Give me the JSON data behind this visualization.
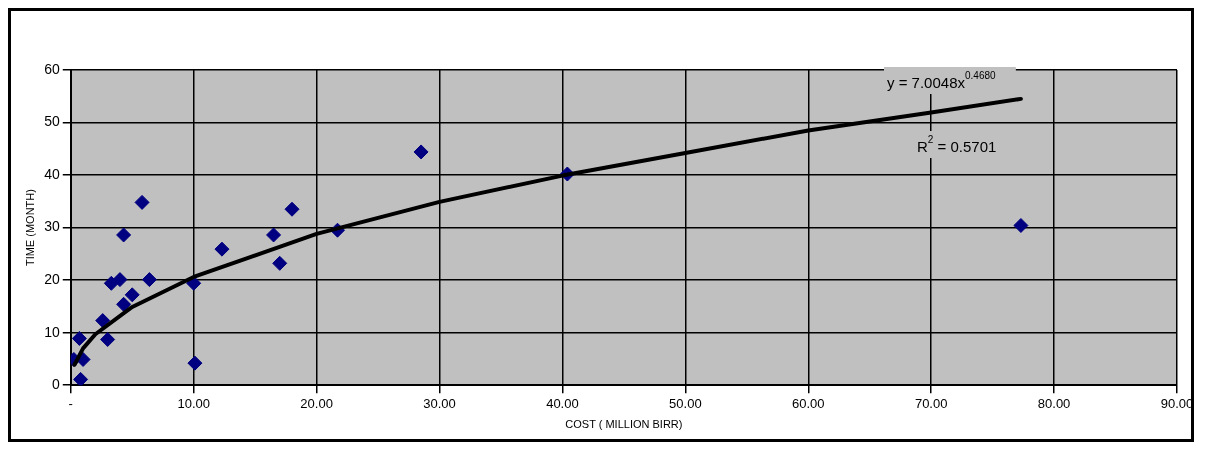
{
  "chart_data": {
    "type": "scatter",
    "xlabel": "COST ( MILLION BIRR)",
    "ylabel": "TIME (MONTH)",
    "xlim": [
      0,
      90
    ],
    "xticks": [
      {
        "value": 0,
        "label": "-"
      },
      {
        "value": 10,
        "label": "10.00"
      },
      {
        "value": 20,
        "label": "20.00"
      },
      {
        "value": 30,
        "label": "30.00"
      },
      {
        "value": 40,
        "label": "40.00"
      },
      {
        "value": 50,
        "label": "50.00"
      },
      {
        "value": 60,
        "label": "60.00"
      },
      {
        "value": 70,
        "label": "70.00"
      },
      {
        "value": 80,
        "label": "80.00"
      },
      {
        "value": 90,
        "label": "90.00"
      }
    ],
    "ylim": [
      0,
      60
    ],
    "yticks": [
      0,
      10,
      20,
      30,
      40,
      50,
      60
    ],
    "grid": true,
    "legend": false,
    "marker": "diamond",
    "series": [
      {
        "type": "scatter",
        "color": "#000080",
        "x": [
          0.25,
          0.7,
          1.0,
          0.8,
          2.6,
          3.0,
          3.3,
          4.0,
          4.3,
          5.0,
          4.3,
          5.8,
          6.4,
          10.0,
          10.1,
          12.3,
          16.5,
          17.0,
          18.0,
          21.7,
          28.5,
          40.4,
          77.3
        ],
        "values": [
          4.9,
          8.9,
          4.9,
          1.1,
          12.3,
          8.7,
          19.4,
          20.1,
          15.4,
          17.2,
          28.6,
          34.8,
          20.1,
          19.4,
          4.2,
          25.9,
          28.6,
          23.2,
          33.5,
          29.5,
          44.4,
          40.2,
          30.4
        ]
      },
      {
        "type": "line",
        "color": "#000000",
        "marker": "none",
        "line_style": "solid",
        "x": [
          0.3,
          1,
          2,
          5,
          10,
          20,
          30,
          40,
          50,
          60,
          70,
          77.3
        ],
        "values": [
          3.9,
          7.0,
          9.7,
          14.9,
          20.6,
          28.8,
          34.9,
          39.9,
          44.2,
          48.5,
          51.9,
          54.5
        ]
      }
    ],
    "annotations": [
      "y = 7.0048x$^{0.4680}$",
      "R$^{2}$ = 0.5701"
    ]
  }
}
